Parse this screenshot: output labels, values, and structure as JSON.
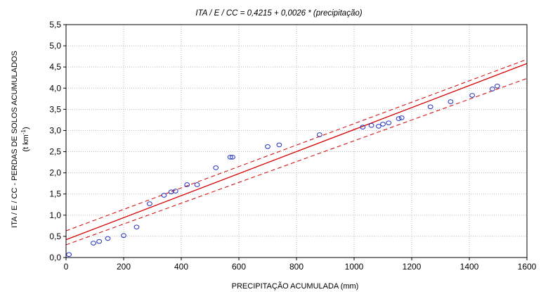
{
  "chart_data": {
    "type": "scatter",
    "title": "ITA / E / CC = 0,4215 + 0,0026 * (precipitação)",
    "xlabel": "PRECIPITAÇÃO ACUMULADA (mm)",
    "ylabel_line1": "ITA / E / CC - PERDAS DE SOLOS ACUMULADOS",
    "ylabel_line2": "(t km",
    "ylabel_sup": "-1",
    "ylabel_close": ")",
    "xlim": [
      0,
      1600
    ],
    "ylim": [
      0,
      5.5
    ],
    "x_ticks": [
      0,
      200,
      400,
      600,
      800,
      1000,
      1200,
      1400,
      1600
    ],
    "y_ticks": [
      0.0,
      0.5,
      1.0,
      1.5,
      2.0,
      2.5,
      3.0,
      3.5,
      4.0,
      4.5,
      5.0,
      5.5
    ],
    "y_tick_labels": [
      "0,0",
      "0,5",
      "1,0",
      "1,5",
      "2,0",
      "2,5",
      "3,0",
      "3,5",
      "4,0",
      "4,5",
      "5,0",
      "5,5"
    ],
    "grid": true,
    "regression": {
      "intercept": 0.4215,
      "slope": 0.0026
    },
    "confidence_band": {
      "lower_at_xmin": 0.3,
      "lower_at_xmax": 4.23,
      "upper_at_xmin": 0.63,
      "upper_at_xmax": 4.68
    },
    "points": [
      {
        "x": 10,
        "y": 0.07
      },
      {
        "x": 95,
        "y": 0.34
      },
      {
        "x": 115,
        "y": 0.38
      },
      {
        "x": 145,
        "y": 0.45
      },
      {
        "x": 200,
        "y": 0.52
      },
      {
        "x": 245,
        "y": 0.72
      },
      {
        "x": 290,
        "y": 1.27
      },
      {
        "x": 340,
        "y": 1.47
      },
      {
        "x": 365,
        "y": 1.55
      },
      {
        "x": 380,
        "y": 1.57
      },
      {
        "x": 420,
        "y": 1.72
      },
      {
        "x": 455,
        "y": 1.72
      },
      {
        "x": 520,
        "y": 2.12
      },
      {
        "x": 570,
        "y": 2.37
      },
      {
        "x": 578,
        "y": 2.37
      },
      {
        "x": 700,
        "y": 2.62
      },
      {
        "x": 740,
        "y": 2.66
      },
      {
        "x": 880,
        "y": 2.9
      },
      {
        "x": 1030,
        "y": 3.08
      },
      {
        "x": 1060,
        "y": 3.12
      },
      {
        "x": 1085,
        "y": 3.1
      },
      {
        "x": 1100,
        "y": 3.15
      },
      {
        "x": 1120,
        "y": 3.18
      },
      {
        "x": 1155,
        "y": 3.28
      },
      {
        "x": 1165,
        "y": 3.3
      },
      {
        "x": 1265,
        "y": 3.56
      },
      {
        "x": 1335,
        "y": 3.68
      },
      {
        "x": 1410,
        "y": 3.83
      },
      {
        "x": 1480,
        "y": 3.98
      },
      {
        "x": 1497,
        "y": 4.05
      }
    ],
    "colors": {
      "points": "#1f2fbf",
      "fit_line": "#d40000",
      "band": "#d40000",
      "axes": "#000000"
    }
  }
}
